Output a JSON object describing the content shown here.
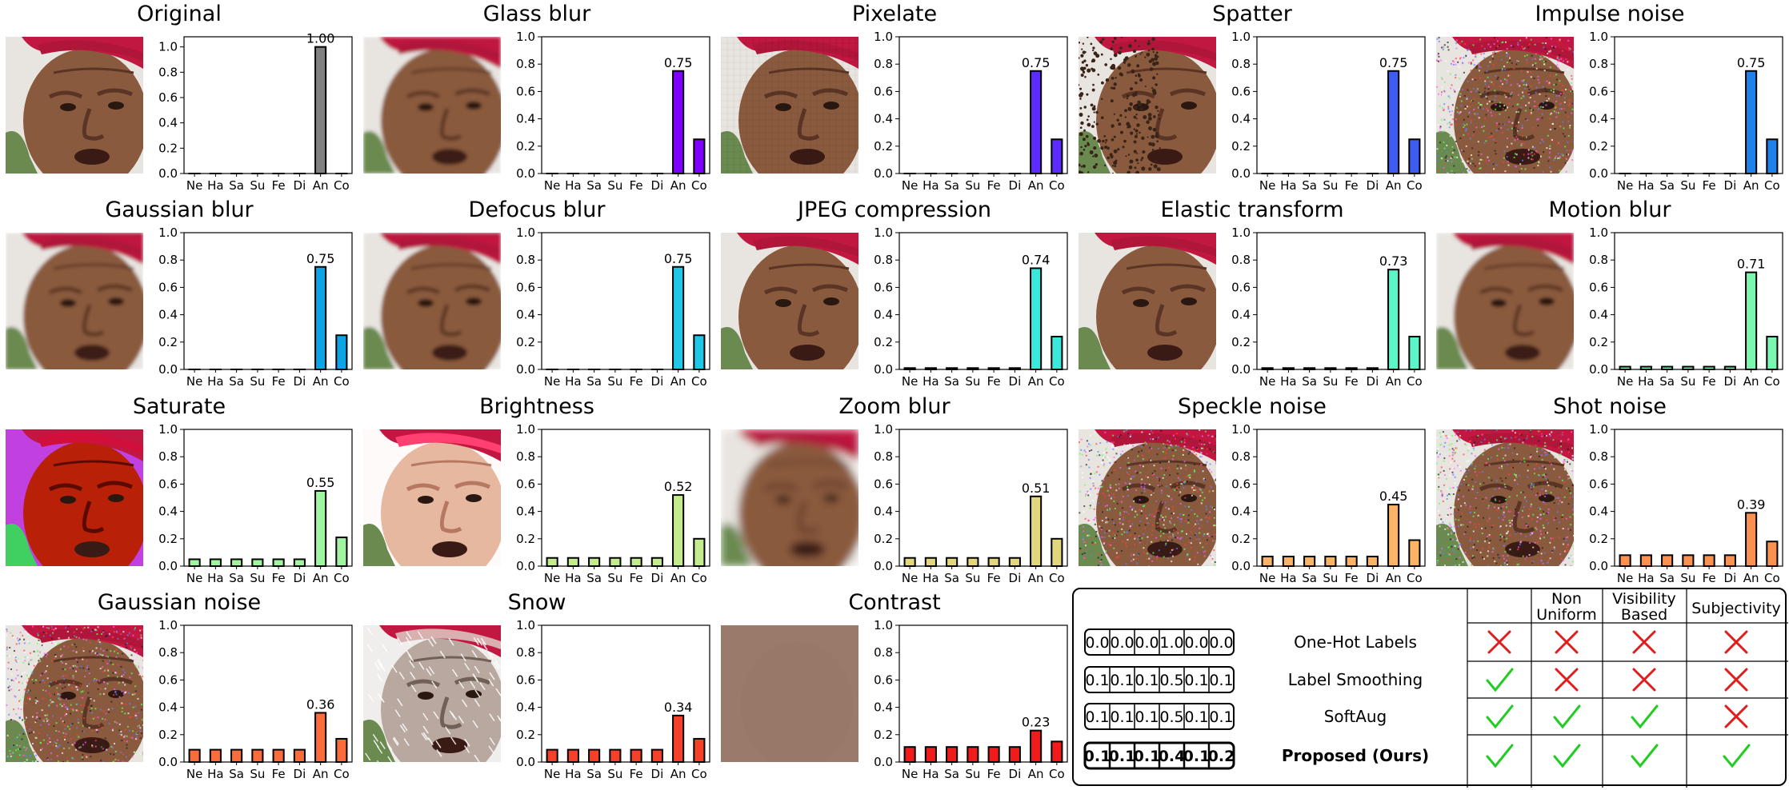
{
  "categories": [
    "Ne",
    "Ha",
    "Sa",
    "Su",
    "Fe",
    "Di",
    "An",
    "Co"
  ],
  "yticks": [
    "0.0",
    "0.2",
    "0.4",
    "0.6",
    "0.8",
    "1.0"
  ],
  "chart_data": [
    {
      "type": "bar",
      "title": "Original",
      "categories": [
        "Ne",
        "Ha",
        "Sa",
        "Su",
        "Fe",
        "Di",
        "An",
        "Co"
      ],
      "values": [
        0,
        0,
        0,
        0,
        0,
        0,
        1.0,
        0
      ],
      "label": "1.00",
      "color": "#808080",
      "ylim": [
        0,
        1.08
      ]
    },
    {
      "type": "bar",
      "title": "Glass blur",
      "categories": [
        "Ne",
        "Ha",
        "Sa",
        "Su",
        "Fe",
        "Di",
        "An",
        "Co"
      ],
      "values": [
        0,
        0,
        0,
        0,
        0,
        0,
        0.75,
        0.25
      ],
      "label": "0.75",
      "color": "#7f00ff",
      "ylim": [
        0,
        1.0
      ]
    },
    {
      "type": "bar",
      "title": "Pixelate",
      "categories": [
        "Ne",
        "Ha",
        "Sa",
        "Su",
        "Fe",
        "Di",
        "An",
        "Co"
      ],
      "values": [
        0,
        0,
        0,
        0,
        0,
        0,
        0.75,
        0.25
      ],
      "label": "0.75",
      "color": "#5b2bff",
      "ylim": [
        0,
        1.0
      ]
    },
    {
      "type": "bar",
      "title": "Spatter",
      "categories": [
        "Ne",
        "Ha",
        "Sa",
        "Su",
        "Fe",
        "Di",
        "An",
        "Co"
      ],
      "values": [
        0,
        0,
        0,
        0,
        0,
        0,
        0.75,
        0.25
      ],
      "label": "0.75",
      "color": "#3c5cf2",
      "ylim": [
        0,
        1.0
      ]
    },
    {
      "type": "bar",
      "title": "Impulse noise",
      "categories": [
        "Ne",
        "Ha",
        "Sa",
        "Su",
        "Fe",
        "Di",
        "An",
        "Co"
      ],
      "values": [
        0,
        0,
        0,
        0,
        0,
        0,
        0.75,
        0.25
      ],
      "label": "0.75",
      "color": "#1e82ea",
      "ylim": [
        0,
        1.0
      ]
    },
    {
      "type": "bar",
      "title": "Gaussian blur",
      "categories": [
        "Ne",
        "Ha",
        "Sa",
        "Su",
        "Fe",
        "Di",
        "An",
        "Co"
      ],
      "values": [
        0,
        0,
        0,
        0,
        0,
        0,
        0.75,
        0.25
      ],
      "label": "0.75",
      "color": "#0ba5e6",
      "ylim": [
        0,
        1.0
      ]
    },
    {
      "type": "bar",
      "title": "Defocus blur",
      "categories": [
        "Ne",
        "Ha",
        "Sa",
        "Su",
        "Fe",
        "Di",
        "An",
        "Co"
      ],
      "values": [
        0,
        0,
        0,
        0,
        0,
        0,
        0.75,
        0.25
      ],
      "label": "0.75",
      "color": "#1ec8e6",
      "ylim": [
        0,
        1.0
      ]
    },
    {
      "type": "bar",
      "title": "JPEG compression",
      "categories": [
        "Ne",
        "Ha",
        "Sa",
        "Su",
        "Fe",
        "Di",
        "An",
        "Co"
      ],
      "values": [
        0.01,
        0.01,
        0.01,
        0.01,
        0.01,
        0.01,
        0.74,
        0.24
      ],
      "label": "0.74",
      "color": "#3ce8dc",
      "ylim": [
        0,
        1.0
      ]
    },
    {
      "type": "bar",
      "title": "Elastic transform",
      "categories": [
        "Ne",
        "Ha",
        "Sa",
        "Su",
        "Fe",
        "Di",
        "An",
        "Co"
      ],
      "values": [
        0.01,
        0.01,
        0.01,
        0.01,
        0.01,
        0.01,
        0.73,
        0.24
      ],
      "label": "0.73",
      "color": "#5cf5c8",
      "ylim": [
        0,
        1.0
      ]
    },
    {
      "type": "bar",
      "title": "Motion blur",
      "categories": [
        "Ne",
        "Ha",
        "Sa",
        "Su",
        "Fe",
        "Di",
        "An",
        "Co"
      ],
      "values": [
        0.02,
        0.02,
        0.02,
        0.02,
        0.02,
        0.02,
        0.71,
        0.24
      ],
      "label": "0.71",
      "color": "#7cf7b0",
      "ylim": [
        0,
        1.0
      ]
    },
    {
      "type": "bar",
      "title": "Saturate",
      "categories": [
        "Ne",
        "Ha",
        "Sa",
        "Su",
        "Fe",
        "Di",
        "An",
        "Co"
      ],
      "values": [
        0.05,
        0.05,
        0.05,
        0.05,
        0.05,
        0.05,
        0.55,
        0.21
      ],
      "label": "0.55",
      "color": "#a0f5a0",
      "ylim": [
        0,
        1.0
      ]
    },
    {
      "type": "bar",
      "title": "Brightness",
      "categories": [
        "Ne",
        "Ha",
        "Sa",
        "Su",
        "Fe",
        "Di",
        "An",
        "Co"
      ],
      "values": [
        0.06,
        0.06,
        0.06,
        0.06,
        0.06,
        0.06,
        0.52,
        0.2
      ],
      "label": "0.52",
      "color": "#c4ec8c",
      "ylim": [
        0,
        1.0
      ]
    },
    {
      "type": "bar",
      "title": "Zoom blur",
      "categories": [
        "Ne",
        "Ha",
        "Sa",
        "Su",
        "Fe",
        "Di",
        "An",
        "Co"
      ],
      "values": [
        0.06,
        0.06,
        0.06,
        0.06,
        0.06,
        0.06,
        0.51,
        0.2
      ],
      "label": "0.51",
      "color": "#e2d77c",
      "ylim": [
        0,
        1.0
      ]
    },
    {
      "type": "bar",
      "title": "Speckle noise",
      "categories": [
        "Ne",
        "Ha",
        "Sa",
        "Su",
        "Fe",
        "Di",
        "An",
        "Co"
      ],
      "values": [
        0.07,
        0.07,
        0.07,
        0.07,
        0.07,
        0.07,
        0.45,
        0.19
      ],
      "label": "0.45",
      "color": "#fbb466",
      "ylim": [
        0,
        1.0
      ]
    },
    {
      "type": "bar",
      "title": "Shot noise",
      "categories": [
        "Ne",
        "Ha",
        "Sa",
        "Su",
        "Fe",
        "Di",
        "An",
        "Co"
      ],
      "values": [
        0.08,
        0.08,
        0.08,
        0.08,
        0.08,
        0.08,
        0.39,
        0.18
      ],
      "label": "0.39",
      "color": "#fb9150",
      "ylim": [
        0,
        1.0
      ]
    },
    {
      "type": "bar",
      "title": "Gaussian noise",
      "categories": [
        "Ne",
        "Ha",
        "Sa",
        "Su",
        "Fe",
        "Di",
        "An",
        "Co"
      ],
      "values": [
        0.09,
        0.09,
        0.09,
        0.09,
        0.09,
        0.09,
        0.36,
        0.17
      ],
      "label": "0.36",
      "color": "#fb6c3c",
      "ylim": [
        0,
        1.0
      ]
    },
    {
      "type": "bar",
      "title": "Snow",
      "categories": [
        "Ne",
        "Ha",
        "Sa",
        "Su",
        "Fe",
        "Di",
        "An",
        "Co"
      ],
      "values": [
        0.09,
        0.09,
        0.09,
        0.09,
        0.09,
        0.09,
        0.34,
        0.17
      ],
      "label": "0.34",
      "color": "#f5402a",
      "ylim": [
        0,
        1.0
      ]
    },
    {
      "type": "bar",
      "title": "Contrast",
      "categories": [
        "Ne",
        "Ha",
        "Sa",
        "Su",
        "Fe",
        "Di",
        "An",
        "Co"
      ],
      "values": [
        0.11,
        0.11,
        0.11,
        0.11,
        0.11,
        0.11,
        0.23,
        0.15
      ],
      "label": "0.23",
      "color": "#f01c1c",
      "ylim": [
        0,
        1.0
      ]
    }
  ],
  "faces": [
    {
      "variant": "clean"
    },
    {
      "variant": "blur"
    },
    {
      "variant": "pixel"
    },
    {
      "variant": "spatter"
    },
    {
      "variant": "noise"
    },
    {
      "variant": "blur"
    },
    {
      "variant": "blur"
    },
    {
      "variant": "clean"
    },
    {
      "variant": "clean"
    },
    {
      "variant": "blur"
    },
    {
      "variant": "saturate"
    },
    {
      "variant": "bright"
    },
    {
      "variant": "zoom"
    },
    {
      "variant": "noise"
    },
    {
      "variant": "noise"
    },
    {
      "variant": "noise"
    },
    {
      "variant": "snow"
    },
    {
      "variant": "contrast"
    }
  ],
  "table": {
    "headers": [
      "",
      "Non\nUniform",
      "Visibility\nBased",
      "Subjectivity"
    ],
    "rows": [
      {
        "label": "One-Hot Labels",
        "vector": [
          "0.0",
          "0.0",
          "0.0",
          "1.0",
          "0.0",
          "0.0"
        ],
        "checks": [
          false,
          false,
          false,
          false
        ],
        "bold": false
      },
      {
        "label": "Label Smoothing",
        "vector": [
          "0.1",
          "0.1",
          "0.1",
          "0.5",
          "0.1",
          "0.1"
        ],
        "checks": [
          true,
          false,
          false,
          false
        ],
        "bold": false
      },
      {
        "label": "SoftAug",
        "vector": [
          "0.1",
          "0.1",
          "0.1",
          "0.5",
          "0.1",
          "0.1"
        ],
        "checks": [
          true,
          true,
          true,
          false
        ],
        "bold": false
      },
      {
        "label": "Proposed (Ours)",
        "vector": [
          "0.1",
          "0.1",
          "0.1",
          "0.4",
          "0.1",
          "0.2"
        ],
        "checks": [
          true,
          true,
          true,
          true
        ],
        "bold": true
      }
    ]
  }
}
